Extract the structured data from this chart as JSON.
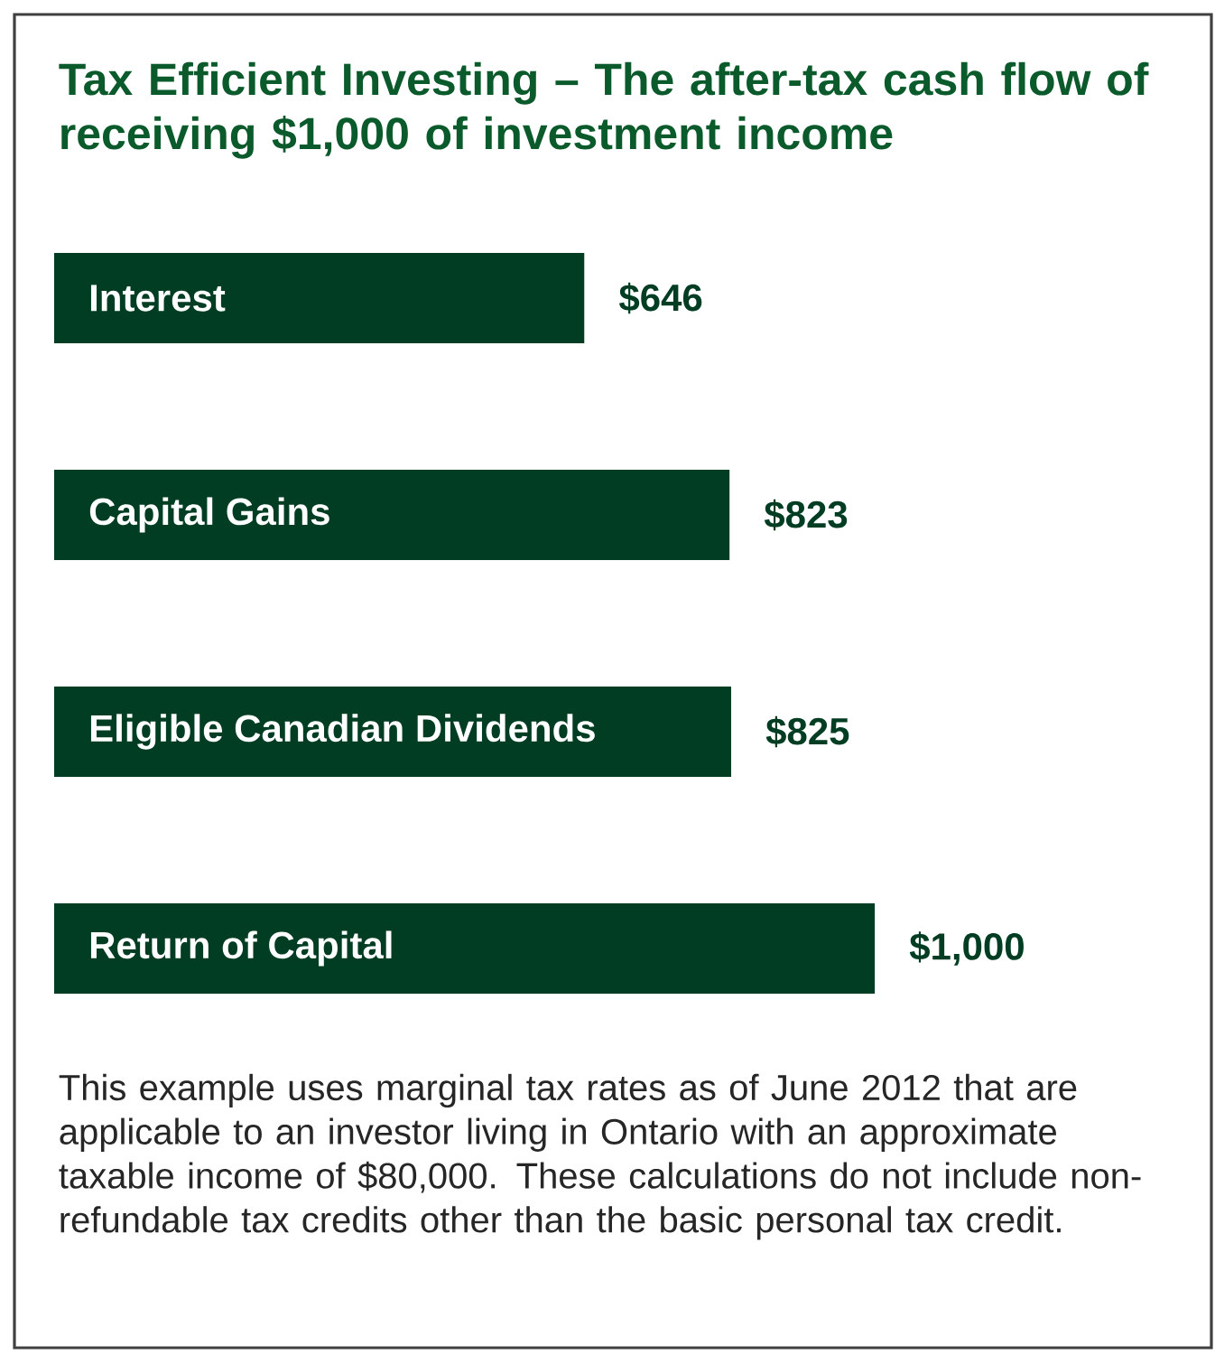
{
  "chart_data": {
    "type": "bar",
    "orientation": "horizontal",
    "title": "Tax Efficient Investing – The after-tax cash flow of receiving $1,000 of investment income",
    "categories": [
      "Interest",
      "Capital Gains",
      "Eligible Canadian Dividends",
      "Return of Capital"
    ],
    "values": [
      646,
      823,
      825,
      1000
    ],
    "value_labels": [
      "$646",
      "$823",
      "$825",
      "$1,000"
    ],
    "color": "#003d23",
    "annotations": [
      "This example uses marginal tax rates as of June 2012 that are applicable to an investor living in Ontario with an approximate taxable income of $80,000. These calculations do not include non-refundable tax credits other than the basic personal tax credit."
    ]
  }
}
